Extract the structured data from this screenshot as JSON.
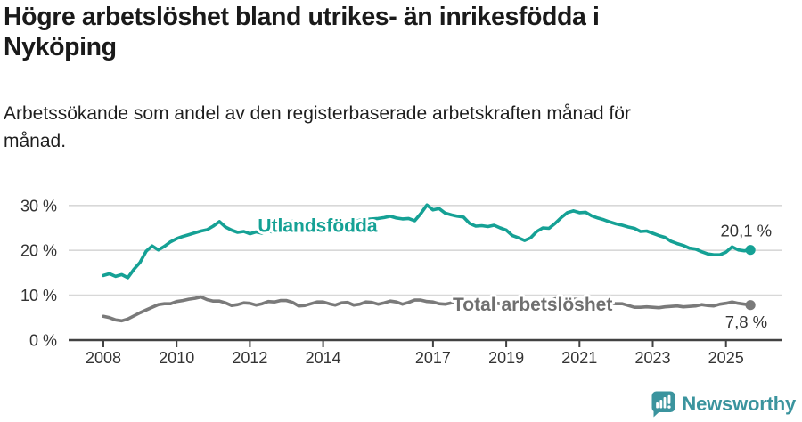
{
  "header": {
    "title_lines": [
      "Högre arbetslöshet bland utrikes- än inrikesfödda i",
      "Nyköping"
    ],
    "subtitle_lines": [
      "Arbetssökande som andel av den registerbaserade arbetskraften månad för",
      "månad."
    ]
  },
  "footer": {
    "brand": "Newsworthy",
    "brand_color": "#3b949e",
    "logo_icon": "newsworthy-bar-chart-bubble-icon"
  },
  "chart_data": {
    "type": "line",
    "title": "Högre arbetslöshet bland utrikes- än inrikesfödda i Nyköping",
    "subtitle": "Arbetssökande som andel av den registerbaserade arbetskraften månad för månad.",
    "unit": "%",
    "grid": "horizontal",
    "x_start": 2008.0,
    "x_step_years": 0.16667,
    "xlim": [
      2007.1,
      2026.5
    ],
    "ylim": [
      0,
      32
    ],
    "x_ticks": [
      {
        "value": 2008,
        "label": "2008"
      },
      {
        "value": 2010,
        "label": "2010"
      },
      {
        "value": 2012,
        "label": "2012"
      },
      {
        "value": 2014,
        "label": "2014"
      },
      {
        "value": 2017,
        "label": "2017"
      },
      {
        "value": 2019,
        "label": "2019"
      },
      {
        "value": 2021,
        "label": "2021"
      },
      {
        "value": 2023,
        "label": "2023"
      },
      {
        "value": 2025,
        "label": "2025"
      }
    ],
    "y_ticks": [
      {
        "value": 0,
        "label": "0 %"
      },
      {
        "value": 10,
        "label": "10 %"
      },
      {
        "value": 20,
        "label": "20 %"
      },
      {
        "value": 30,
        "label": "30 %"
      }
    ],
    "series": [
      {
        "name": "Utlandsfödda",
        "color": "#15a195",
        "label_color": "#15a195",
        "end_label": "20,1 %",
        "end_value": 20.1,
        "end_label_position": "above",
        "inline_label": {
          "year": 2013.85,
          "value": 24.1
        },
        "values": [
          14.4,
          14.8,
          14.2,
          14.6,
          13.9,
          15.8,
          17.3,
          19.8,
          21.0,
          20.1,
          20.9,
          21.9,
          22.6,
          23.1,
          23.5,
          23.9,
          24.3,
          24.6,
          25.4,
          26.4,
          25.2,
          24.5,
          24.0,
          24.2,
          23.7,
          24.1,
          23.8,
          24.3,
          24.0,
          24.5,
          25.2,
          26.5,
          25.8,
          24.7,
          24.4,
          24.7,
          24.9,
          25.2,
          25.5,
          25.8,
          26.1,
          26.4,
          26.7,
          26.9,
          27.0,
          27.1,
          27.3,
          27.6,
          27.2,
          27.0,
          27.1,
          26.6,
          28.2,
          30.1,
          29.0,
          29.3,
          28.3,
          27.9,
          27.6,
          27.4,
          26.0,
          25.4,
          25.5,
          25.3,
          25.6,
          25.0,
          24.5,
          23.3,
          22.8,
          22.2,
          22.8,
          24.2,
          25.0,
          24.9,
          26.0,
          27.3,
          28.4,
          28.8,
          28.4,
          28.5,
          27.7,
          27.2,
          26.8,
          26.3,
          25.9,
          25.6,
          25.2,
          24.9,
          24.2,
          24.3,
          23.8,
          23.3,
          22.9,
          22.0,
          21.5,
          21.1,
          20.5,
          20.3,
          19.7,
          19.2,
          19.0,
          19.0,
          19.6,
          20.8,
          20.1,
          19.9,
          20.1
        ]
      },
      {
        "name": "Total arbetslöshet",
        "color": "#7a7a7a",
        "label_color": "#6f6f6f",
        "end_label": "7,8 %",
        "end_value": 7.8,
        "end_label_position": "below",
        "inline_label": {
          "year": 2019.72,
          "value": 6.5
        },
        "values": [
          5.3,
          5.0,
          4.5,
          4.3,
          4.7,
          5.4,
          6.1,
          6.7,
          7.3,
          7.9,
          8.1,
          8.1,
          8.6,
          8.8,
          9.1,
          9.3,
          9.6,
          9.0,
          8.7,
          8.7,
          8.3,
          7.7,
          7.9,
          8.3,
          8.2,
          7.8,
          8.1,
          8.6,
          8.5,
          8.8,
          8.8,
          8.4,
          7.6,
          7.7,
          8.1,
          8.5,
          8.5,
          8.1,
          7.8,
          8.3,
          8.4,
          7.8,
          8.0,
          8.5,
          8.4,
          8.0,
          8.3,
          8.7,
          8.5,
          8.0,
          8.4,
          8.9,
          8.9,
          8.6,
          8.5,
          8.1,
          8.0,
          8.3,
          8.4,
          8.6,
          8.3,
          8.0,
          8.1,
          8.4,
          8.3,
          8.1,
          7.9,
          7.7,
          7.8,
          8.0,
          8.1,
          8.3,
          8.4,
          8.8,
          9.2,
          9.4,
          9.3,
          9.1,
          9.0,
          8.8,
          8.6,
          8.4,
          8.3,
          8.2,
          8.1,
          8.1,
          7.7,
          7.3,
          7.3,
          7.4,
          7.3,
          7.2,
          7.4,
          7.5,
          7.6,
          7.4,
          7.5,
          7.6,
          7.9,
          7.7,
          7.6,
          8.0,
          8.2,
          8.5,
          8.2,
          8.0,
          7.8
        ]
      }
    ]
  }
}
